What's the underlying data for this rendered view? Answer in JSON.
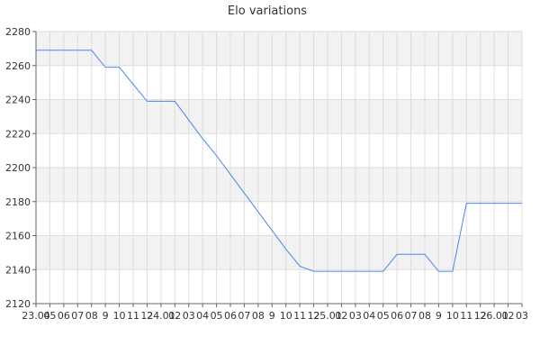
{
  "chart_data": {
    "type": "line",
    "title": "Elo variations",
    "xlabel": "",
    "ylabel": "",
    "ylim": [
      2120,
      2280
    ],
    "yticks": [
      2120,
      2140,
      2160,
      2180,
      2200,
      2220,
      2240,
      2260,
      2280
    ],
    "x_tick_labels": [
      "23.04",
      "05",
      "06",
      "07",
      "08",
      "9",
      "10",
      "11",
      "12",
      "24.01",
      "02",
      "03",
      "04",
      "05",
      "06",
      "07",
      "08",
      "9",
      "10",
      "11",
      "12",
      "25.01",
      "02",
      "03",
      "04",
      "05",
      "06",
      "07",
      "08",
      "9",
      "10",
      "11",
      "12",
      "26.01",
      "02",
      "03"
    ],
    "grid": true,
    "legend": "none",
    "series": [
      {
        "color": "#4a86e8",
        "points": [
          {
            "x": "23.04",
            "y": 2269
          },
          {
            "x": "05",
            "y": 2269
          },
          {
            "x": "06",
            "y": 2269
          },
          {
            "x": "07",
            "y": 2269
          },
          {
            "x": "08",
            "y": 2269
          },
          {
            "x": "9",
            "y": 2259
          },
          {
            "x": "10",
            "y": 2259
          },
          {
            "x": "11",
            "y": 2249
          },
          {
            "x": "12",
            "y": 2239
          },
          {
            "x": "24.01",
            "y": 2239
          },
          {
            "x": "02",
            "y": 2239
          },
          {
            "x": "03",
            "y": 2228
          },
          {
            "x": "04",
            "y": 2217
          },
          {
            "x": "05",
            "y": 2207
          },
          {
            "x": "06",
            "y": 2196
          },
          {
            "x": "07",
            "y": 2185
          },
          {
            "x": "08",
            "y": 2174
          },
          {
            "x": "9",
            "y": 2163
          },
          {
            "x": "10",
            "y": 2152
          },
          {
            "x": "11",
            "y": 2142
          },
          {
            "x": "12",
            "y": 2139
          },
          {
            "x": "25.01",
            "y": 2139
          },
          {
            "x": "02",
            "y": 2139
          },
          {
            "x": "03",
            "y": 2139
          },
          {
            "x": "04",
            "y": 2139
          },
          {
            "x": "05",
            "y": 2139
          },
          {
            "x": "06",
            "y": 2149
          },
          {
            "x": "07",
            "y": 2149
          },
          {
            "x": "08",
            "y": 2149
          },
          {
            "x": "9",
            "y": 2139
          },
          {
            "x": "10",
            "y": 2139
          },
          {
            "x": "11",
            "y": 2179
          },
          {
            "x": "12",
            "y": 2179
          },
          {
            "x": "26.01",
            "y": 2179
          },
          {
            "x": "02",
            "y": 2179
          },
          {
            "x": "03",
            "y": 2179
          }
        ]
      }
    ],
    "colors": {
      "line": "#4a86e8",
      "band": "#f2f2f2",
      "grid": "#dddddd",
      "axis": "#666666",
      "text": "#333333"
    }
  }
}
